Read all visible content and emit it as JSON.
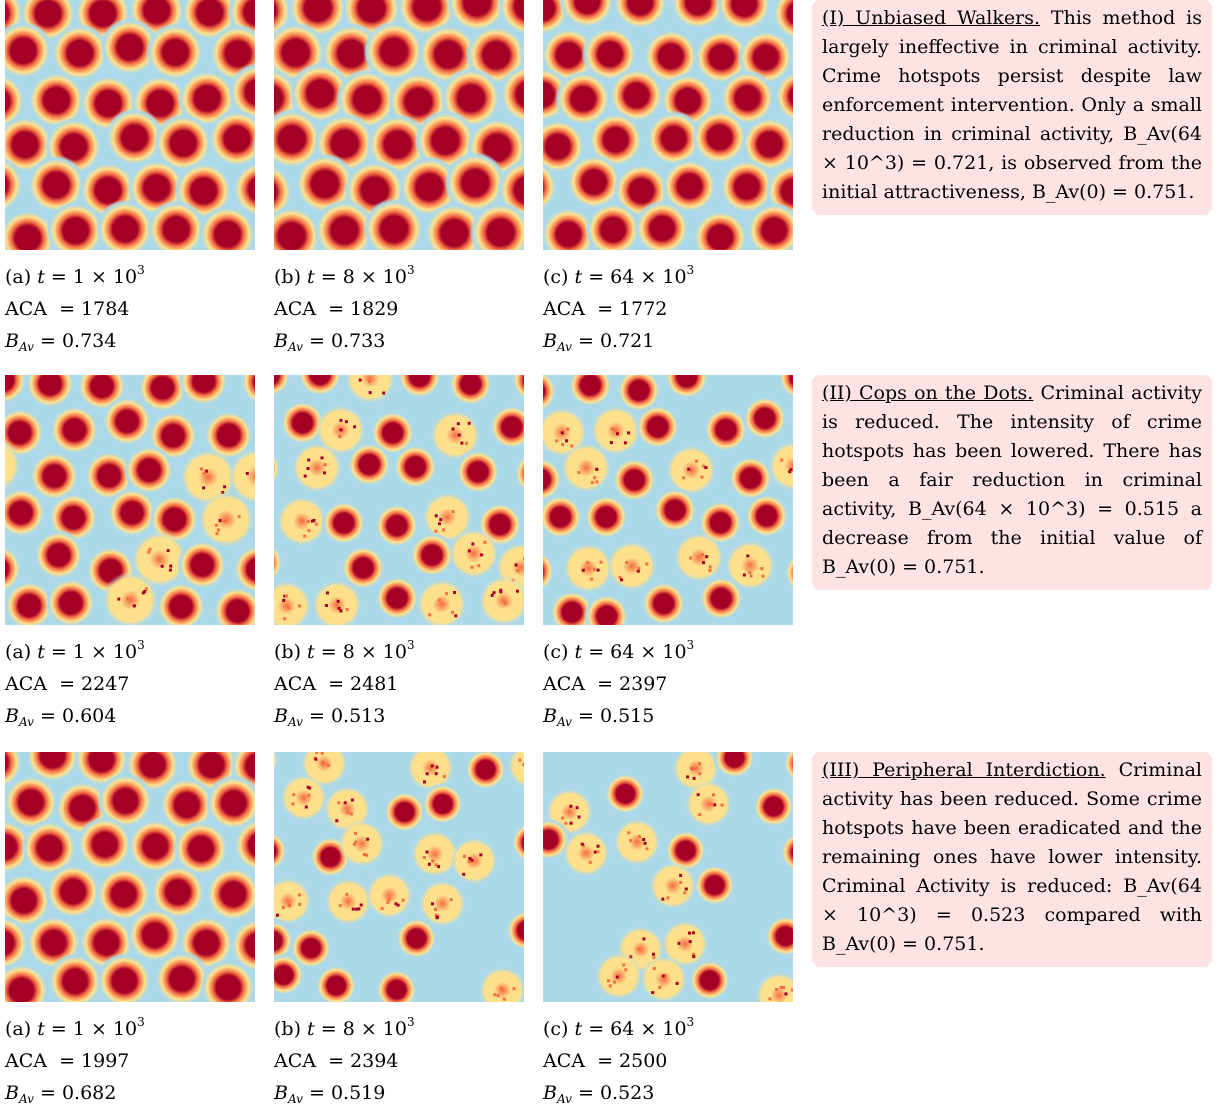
{
  "rows": [
    {
      "panels": [
        {
          "label": "(a)",
          "t_coef": "1",
          "t_exp": "3",
          "aca": "1784",
          "bav": "0.734"
        },
        {
          "label": "(b)",
          "t_coef": "8",
          "t_exp": "3",
          "aca": "1829",
          "bav": "0.733"
        },
        {
          "label": "(c)",
          "t_coef": "64",
          "t_exp": "3",
          "aca": "1772",
          "bav": "0.721"
        }
      ],
      "description": {
        "heading": "(I) Unbiased Walkers.",
        "text": "This method is largely ineffective in criminal activity. Crime hotspots persist despite law enforcement intervention. Only a small reduction in criminal activity, B_Av(64 × 10^3) = 0.721, is observed from the initial attractiveness, B_Av(0) = 0.751."
      }
    },
    {
      "panels": [
        {
          "label": "(a)",
          "t_coef": "1",
          "t_exp": "3",
          "aca": "2247",
          "bav": "0.604"
        },
        {
          "label": "(b)",
          "t_coef": "8",
          "t_exp": "3",
          "aca": "2481",
          "bav": "0.513"
        },
        {
          "label": "(c)",
          "t_coef": "64",
          "t_exp": "3",
          "aca": "2397",
          "bav": "0.515"
        }
      ],
      "description": {
        "heading": "(II) Cops on the Dots.",
        "text": "Criminal activity is reduced. The intensity of crime hotspots has been lowered. There has been a fair reduction in criminal activity, B_Av(64 × 10^3) = 0.515 a decrease from the initial value of B_Av(0) = 0.751."
      }
    },
    {
      "panels": [
        {
          "label": "(a)",
          "t_coef": "1",
          "t_exp": "3",
          "aca": "1997",
          "bav": "0.682"
        },
        {
          "label": "(b)",
          "t_coef": "8",
          "t_exp": "3",
          "aca": "2394",
          "bav": "0.519"
        },
        {
          "label": "(c)",
          "t_coef": "64",
          "t_exp": "3",
          "aca": "2500",
          "bav": "0.523"
        }
      ],
      "description": {
        "heading": "(III) Peripheral Interdiction.",
        "text": "Criminal activity has been reduced. Some crime hotspots have been eradicated and the remaining ones have lower intensity. Criminal Activity is reduced: B_Av(64 × 10^3) = 0.523 compared with B_Av(0) = 0.751."
      }
    }
  ],
  "labels": {
    "aca": "ACA",
    "b_symbol": "B",
    "b_subscript": "Av",
    "t_symbol": "t",
    "times": "×",
    "ten": "10"
  },
  "colors": {
    "hot": "#a50026",
    "warm": "#f46d43",
    "yellow": "#fee08b",
    "cool": "#abd9e9",
    "cold": "#74add1",
    "box": "#fde3e3"
  }
}
